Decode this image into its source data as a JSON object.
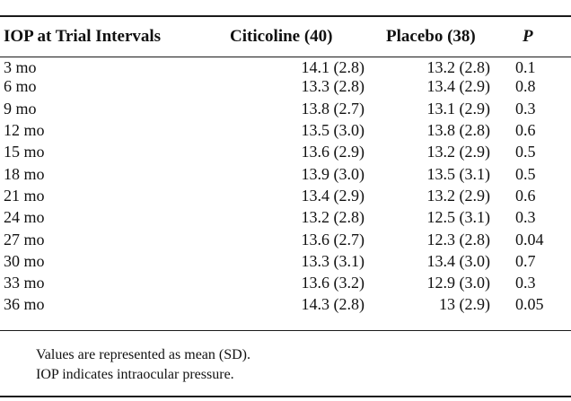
{
  "table": {
    "columns": [
      "IOP at Trial Intervals",
      "Citicoline (40)",
      "Placebo (38)",
      "P"
    ],
    "rows": [
      {
        "interval": "3 mo",
        "citicoline": "14.1 (2.8)",
        "placebo": "13.2 (2.8)",
        "p": "0.1"
      },
      {
        "interval": "6 mo",
        "citicoline": "13.3 (2.8)",
        "placebo": "13.4 (2.9)",
        "p": "0.8"
      },
      {
        "interval": "9 mo",
        "citicoline": "13.8 (2.7)",
        "placebo": "13.1 (2.9)",
        "p": "0.3"
      },
      {
        "interval": "12 mo",
        "citicoline": "13.5 (3.0)",
        "placebo": "13.8 (2.8)",
        "p": "0.6"
      },
      {
        "interval": "15 mo",
        "citicoline": "13.6 (2.9)",
        "placebo": "13.2 (2.9)",
        "p": "0.5"
      },
      {
        "interval": "18 mo",
        "citicoline": "13.9 (3.0)",
        "placebo": "13.5 (3.1)",
        "p": "0.5"
      },
      {
        "interval": "21 mo",
        "citicoline": "13.4 (2.9)",
        "placebo": "13.2 (2.9)",
        "p": "0.6"
      },
      {
        "interval": "24 mo",
        "citicoline": "13.2 (2.8)",
        "placebo": "12.5 (3.1)",
        "p": "0.3"
      },
      {
        "interval": "27 mo",
        "citicoline": "13.6 (2.7)",
        "placebo": "12.3 (2.8)",
        "p": "0.04"
      },
      {
        "interval": "30 mo",
        "citicoline": "13.3 (3.1)",
        "placebo": "13.4 (3.0)",
        "p": "0.7"
      },
      {
        "interval": "33 mo",
        "citicoline": "13.6 (3.2)",
        "placebo": "12.9 (3.0)",
        "p": "0.3"
      },
      {
        "interval": "36 mo",
        "citicoline": "14.3 (2.8)",
        "placebo": "13 (2.9)",
        "p": "0.05"
      }
    ]
  },
  "footnotes": [
    "Values are represented as mean (SD).",
    "IOP indicates intraocular pressure."
  ]
}
